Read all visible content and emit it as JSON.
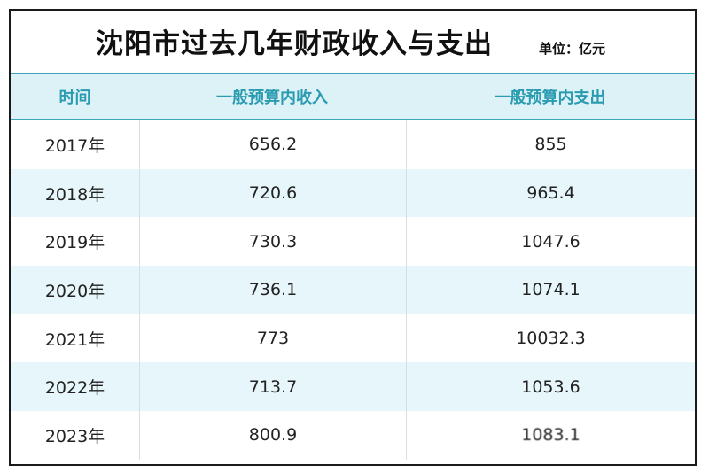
{
  "title": "沈阳市过去几年财政收入与支出",
  "unit": "单位：亿元",
  "headers": {
    "year": "时间",
    "income": "一般预算内收入",
    "expense": "一般预算内支出"
  },
  "rows": [
    {
      "year": "2017年",
      "income": "656.2",
      "expense": "855"
    },
    {
      "year": "2018年",
      "income": "720.6",
      "expense": "965.4"
    },
    {
      "year": "2019年",
      "income": "730.3",
      "expense": "1047.6"
    },
    {
      "year": "2020年",
      "income": "736.1",
      "expense": "1074.1"
    },
    {
      "year": "2021年",
      "income": "773",
      "expense": "10032.3"
    },
    {
      "year": "2022年",
      "income": "713.7",
      "expense": "1053.6"
    },
    {
      "year": "2023年",
      "income": "800.9",
      "expense": "1083.1"
    }
  ],
  "colors": {
    "header_bg": "#dcf2f6",
    "header_text": "#2a9bb0",
    "alt_row_bg": "#e6f6fa",
    "border": "#1a1a1a"
  }
}
